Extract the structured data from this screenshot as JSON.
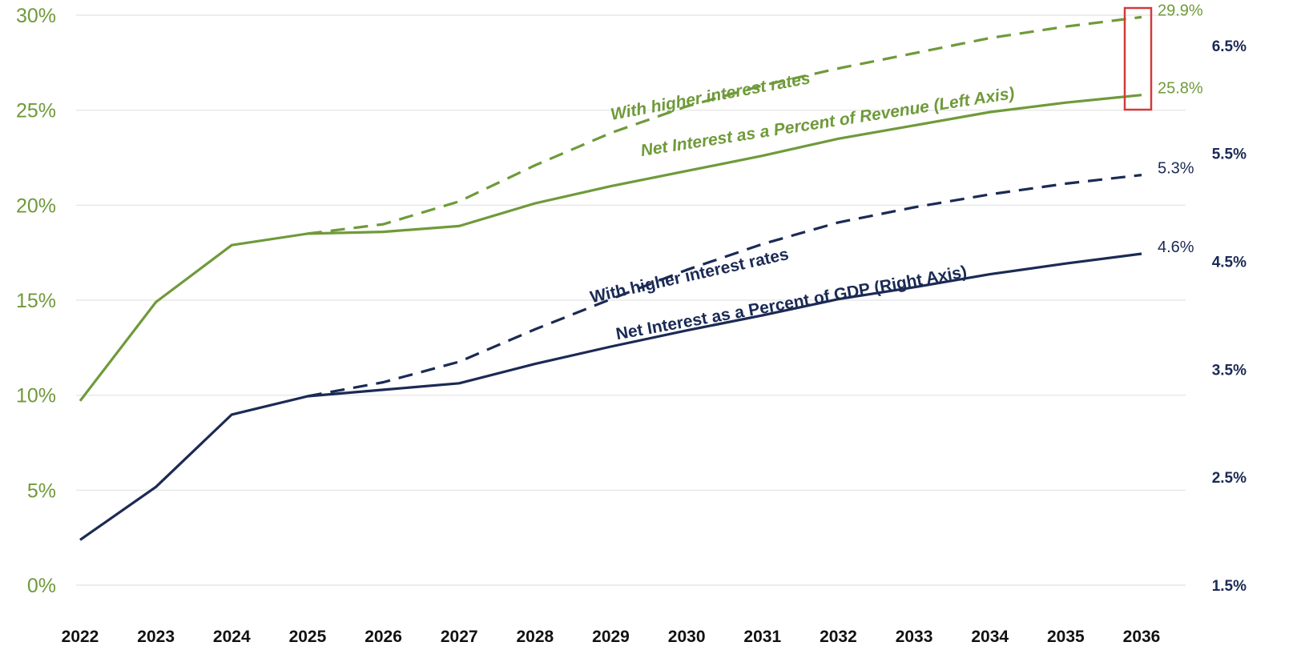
{
  "chart_data": {
    "type": "line",
    "x": [
      "2022",
      "2023",
      "2024",
      "2025",
      "2026",
      "2027",
      "2028",
      "2029",
      "2030",
      "2031",
      "2032",
      "2033",
      "2034",
      "2035",
      "2036"
    ],
    "left_axis": {
      "ticks": [
        "0%",
        "5%",
        "10%",
        "15%",
        "20%",
        "25%",
        "30%"
      ],
      "ylim": [
        0,
        30
      ],
      "color": "#6f9a3a"
    },
    "right_axis": {
      "ticks": [
        "1.5%",
        "2.5%",
        "3.5%",
        "4.5%",
        "5.5%",
        "6.5%"
      ],
      "ylim": [
        1.5,
        6.78
      ],
      "color": "#1b2a55"
    },
    "grid": true,
    "series": [
      {
        "axis": "left",
        "style": "solid",
        "color": "#6f9a3a",
        "values": [
          9.7,
          14.9,
          17.9,
          18.5,
          18.6,
          18.9,
          20.1,
          21.0,
          21.8,
          22.6,
          23.5,
          24.2,
          24.9,
          25.4,
          25.8
        ]
      },
      {
        "axis": "left",
        "style": "dashed",
        "color": "#6f9a3a",
        "values": [
          null,
          null,
          null,
          18.5,
          19.0,
          20.2,
          22.1,
          23.8,
          25.2,
          26.3,
          27.2,
          28.0,
          28.8,
          29.4,
          29.9
        ]
      },
      {
        "axis": "right",
        "style": "solid",
        "color": "#1b2a55",
        "values": [
          1.92,
          2.41,
          3.08,
          3.25,
          3.31,
          3.37,
          3.55,
          3.71,
          3.86,
          4.0,
          4.15,
          4.26,
          4.38,
          4.48,
          4.57
        ]
      },
      {
        "axis": "right",
        "style": "dashed",
        "color": "#1b2a55",
        "values": [
          null,
          null,
          null,
          3.25,
          3.38,
          3.57,
          3.87,
          4.15,
          4.42,
          4.66,
          4.86,
          5.0,
          5.12,
          5.22,
          5.3
        ]
      }
    ],
    "end_labels": [
      {
        "text": "29.9%",
        "series": 1
      },
      {
        "text": "25.8%",
        "series": 0
      },
      {
        "text": "5.3%",
        "series": 3
      },
      {
        "text": "4.6%",
        "series": 2
      }
    ],
    "annotations": [
      {
        "text": "With higher interest rates",
        "color": "#6f9a3a",
        "italic": true
      },
      {
        "text": "Net Interest as a Percent of Revenue (Left Axis)",
        "color": "#6f9a3a",
        "italic": true
      },
      {
        "text": "With higher interest rates",
        "color": "#1b2a55",
        "italic": false
      },
      {
        "text": "Net Interest as a Percent of GDP (Right Axis)",
        "color": "#1b2a55",
        "italic": false
      }
    ],
    "highlight_box_color": "#d23b3b"
  }
}
